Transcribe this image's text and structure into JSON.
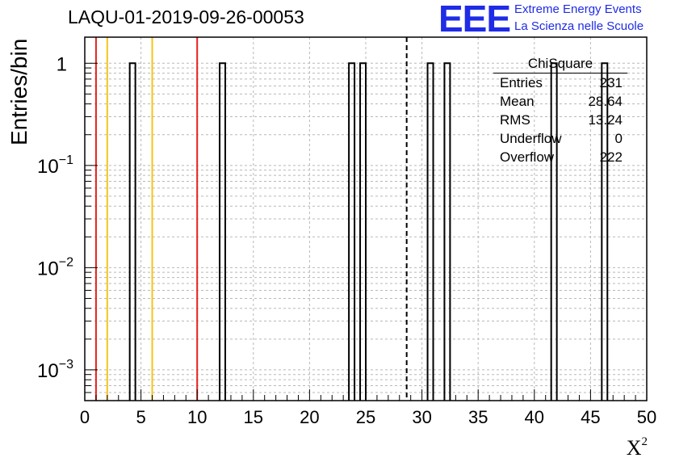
{
  "plot_title": "LAQU-01-2019-09-26-00053",
  "logo": {
    "mark": "EEE",
    "line1": "Extreme Energy Events",
    "line2": "La Scienza nelle Scuole",
    "color": "#1f2be6"
  },
  "axis": {
    "ylabel": "Entries/bin",
    "xlabel_base": "X",
    "xlabel_sup": "2"
  },
  "stats": {
    "title": "ChiSquare",
    "rows": [
      {
        "label": "Entries",
        "value": "231"
      },
      {
        "label": "Mean",
        "value": "28.64"
      },
      {
        "label": "RMS",
        "value": "13.24"
      },
      {
        "label": "Underflow",
        "value": "0"
      },
      {
        "label": "Overflow",
        "value": "222"
      }
    ]
  },
  "chart_data": {
    "type": "bar",
    "title": "LAQU-01-2019-09-26-00053",
    "xlabel": "X^2",
    "ylabel": "Entries/bin",
    "xlim": [
      0,
      50
    ],
    "ylim": [
      0.0005,
      1.8
    ],
    "yscale": "log",
    "grid": true,
    "bin_width": 0.5,
    "x_ticks": [
      0,
      5,
      10,
      15,
      20,
      25,
      30,
      35,
      40,
      45,
      50
    ],
    "y_ticks": [
      {
        "value": 0.001,
        "base": "10",
        "exp": "−3"
      },
      {
        "value": 0.01,
        "base": "10",
        "exp": "−2"
      },
      {
        "value": 0.1,
        "base": "10",
        "exp": "−1"
      },
      {
        "value": 1,
        "base": "1",
        "exp": ""
      }
    ],
    "bins": [
      {
        "x": 4.0,
        "y": 1
      },
      {
        "x": 12.0,
        "y": 1
      },
      {
        "x": 23.5,
        "y": 1
      },
      {
        "x": 24.5,
        "y": 1
      },
      {
        "x": 30.5,
        "y": 1
      },
      {
        "x": 32.0,
        "y": 1
      },
      {
        "x": 41.5,
        "y": 1
      },
      {
        "x": 46.0,
        "y": 1
      }
    ],
    "vertical_lines": [
      {
        "x": 1.0,
        "color": "#e8201c",
        "style": "solid"
      },
      {
        "x": 2.0,
        "color": "#f5c518",
        "style": "solid"
      },
      {
        "x": 6.0,
        "color": "#f5c518",
        "style": "solid"
      },
      {
        "x": 10.0,
        "color": "#e8201c",
        "style": "solid"
      },
      {
        "x": 28.64,
        "color": "#000000",
        "style": "dashed"
      }
    ]
  }
}
